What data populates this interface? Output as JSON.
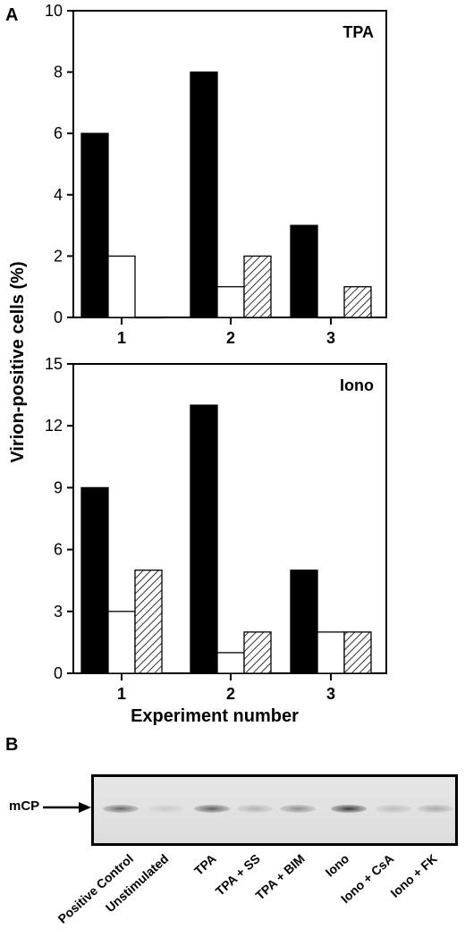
{
  "panel_a_label": "A",
  "panel_b_label": "B",
  "ylabel": "Virion-positive cells (%)",
  "xlabel": "Experiment number",
  "chart_data": [
    {
      "type": "bar",
      "title": "TPA",
      "categories": [
        "1",
        "2",
        "3"
      ],
      "ylim": [
        0,
        10
      ],
      "yticks": [
        "0",
        "2",
        "4",
        "6",
        "8",
        "10"
      ],
      "series": [
        {
          "values": [
            6,
            8,
            3
          ],
          "fill": "solid-black"
        },
        {
          "values": [
            2,
            1,
            0
          ],
          "fill": "white"
        },
        {
          "values": [
            0,
            2,
            1
          ],
          "fill": "hatched"
        }
      ]
    },
    {
      "type": "bar",
      "title": "Iono",
      "categories": [
        "1",
        "2",
        "3"
      ],
      "ylim": [
        0,
        15
      ],
      "yticks": [
        "0",
        "3",
        "6",
        "9",
        "12",
        "15"
      ],
      "series": [
        {
          "values": [
            9,
            13,
            5
          ],
          "fill": "solid-black"
        },
        {
          "values": [
            3,
            1,
            2
          ],
          "fill": "white"
        },
        {
          "values": [
            5,
            2,
            2
          ],
          "fill": "hatched"
        }
      ]
    }
  ],
  "gel": {
    "band_label": "mCP",
    "lanes": [
      {
        "label": "Positive Control",
        "intensity": 0.65
      },
      {
        "label": "Unstimulated",
        "intensity": 0.12
      },
      {
        "label": "TPA",
        "intensity": 0.7
      },
      {
        "label": "TPA + SS",
        "intensity": 0.25
      },
      {
        "label": "TPA + BIM",
        "intensity": 0.45
      },
      {
        "label": "Iono",
        "intensity": 0.9
      },
      {
        "label": "Iono + CsA",
        "intensity": 0.2
      },
      {
        "label": "Iono + FK",
        "intensity": 0.3
      }
    ]
  }
}
